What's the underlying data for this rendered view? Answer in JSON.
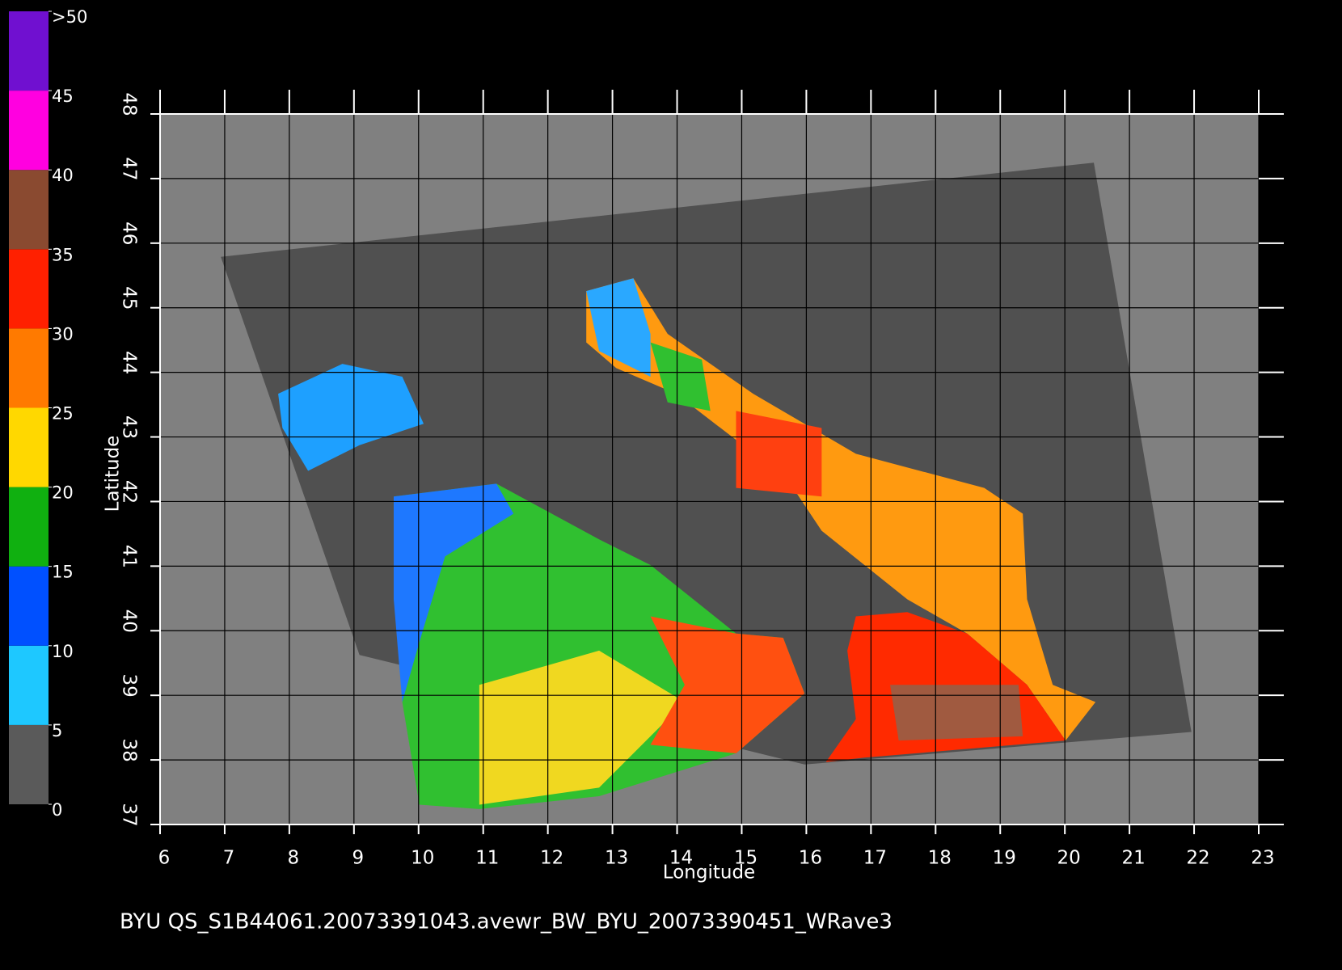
{
  "chart_data": {
    "type": "map",
    "xlabel": "Longitude",
    "ylabel": "Latitude",
    "caption": "BYU  QS_S1B44061.20073391043.avewr_BW_BYU_20073390451_WRave3",
    "xlim": [
      6,
      23
    ],
    "ylim": [
      37,
      48
    ],
    "xticks": [
      6,
      7,
      8,
      9,
      10,
      11,
      12,
      13,
      14,
      15,
      16,
      17,
      18,
      19,
      20,
      21,
      22,
      23
    ],
    "yticks": [
      37,
      38,
      39,
      40,
      41,
      42,
      43,
      44,
      45,
      46,
      47,
      48
    ],
    "grid": true,
    "colorbar": {
      "ticks": [
        0,
        5,
        10,
        15,
        20,
        25,
        30,
        35,
        40,
        45,
        {
          "value": 50,
          "label": ">50"
        }
      ],
      "colors": [
        "#5a5a5a",
        "#1ec8ff",
        "#0050ff",
        "#10b010",
        "#ffd800",
        "#ff7a00",
        "#ff2000",
        "#8a4a30",
        "#ff00e0",
        "#7010d0"
      ]
    }
  }
}
